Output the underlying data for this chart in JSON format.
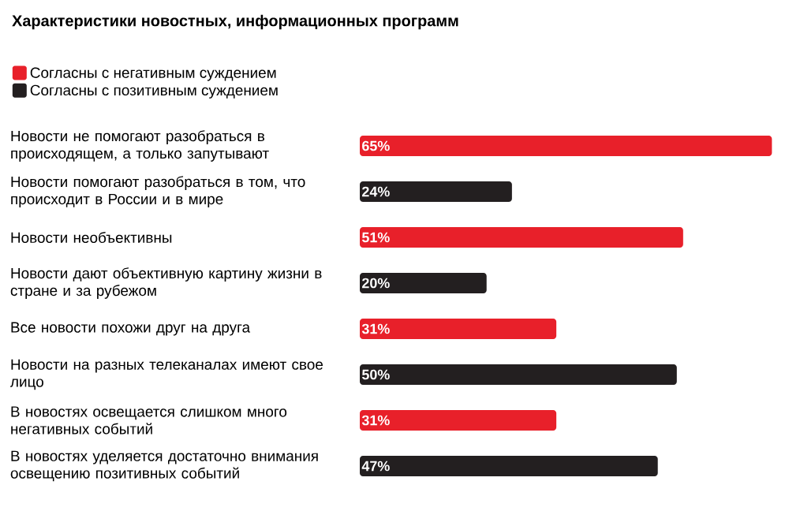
{
  "chart_data": {
    "type": "bar",
    "orientation": "horizontal",
    "title": "Характеристики новостных, информационных программ",
    "categories": [
      "Новости не помогают разобраться в происходящем, а только запутывают",
      "Новости помогают разобраться в том, что происходит в России и в мире",
      "Новости необъективны",
      "Новости дают объективную картину жизни в стране и за рубежом",
      "Все новости похожи друг на друга",
      "Новости на разных телеканалах имеют свое лицо",
      "В новостях освещается слишком много негативных событий",
      "В новостях уделяется достаточно внимания освещению позитивных событий"
    ],
    "series": [
      {
        "name": "Согласны с негативным суждением",
        "color": "#e8202a",
        "values": [
          65,
          null,
          51,
          null,
          31,
          null,
          31,
          null
        ],
        "value_labels": [
          "65%",
          null,
          "51%",
          null,
          "31%",
          null,
          "31%",
          null
        ]
      },
      {
        "name": "Согласны с позитивным суждением",
        "color": "#231f20",
        "values": [
          null,
          24,
          null,
          20,
          null,
          50,
          null,
          47
        ],
        "value_labels": [
          null,
          "24%",
          null,
          "20%",
          null,
          "50%",
          null,
          "47%"
        ]
      }
    ],
    "legend": "top left"
  }
}
